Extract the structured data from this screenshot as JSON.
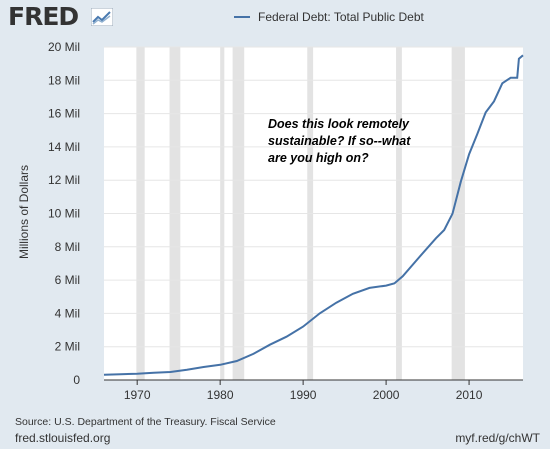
{
  "header": {
    "logo_text": "FRED",
    "logo_icon": "trend-chart-icon"
  },
  "annotation": {
    "lines": [
      "Does this look remotely",
      "sustainable? If so--what",
      "are you high on?"
    ]
  },
  "footer": {
    "source": "Source: U.S. Department of the Treasury. Fiscal Service",
    "site": "fred.stlouisfed.org",
    "short_url": "myf.red/g/chWT"
  },
  "colors": {
    "series": "#4572a7",
    "recession": "#e3e3e3",
    "plot_bg": "#ffffff",
    "page_bg": "#e1e9f0"
  },
  "chart_data": {
    "type": "line",
    "ylabel": "Millions of Dollars",
    "xlim": [
      1966,
      2016.5
    ],
    "ylim": [
      0,
      20000000
    ],
    "x_ticks": [
      1970,
      1980,
      1990,
      2000,
      2010
    ],
    "y_ticks": [
      {
        "value": 0,
        "label": "0"
      },
      {
        "value": 2000000,
        "label": "2 Mil"
      },
      {
        "value": 4000000,
        "label": "4 Mil"
      },
      {
        "value": 6000000,
        "label": "6 Mil"
      },
      {
        "value": 8000000,
        "label": "8 Mil"
      },
      {
        "value": 10000000,
        "label": "10 Mil"
      },
      {
        "value": 12000000,
        "label": "12 Mil"
      },
      {
        "value": 14000000,
        "label": "14 Mil"
      },
      {
        "value": 16000000,
        "label": "16 Mil"
      },
      {
        "value": 18000000,
        "label": "18 Mil"
      },
      {
        "value": 20000000,
        "label": "20 Mil"
      }
    ],
    "grid": true,
    "legend_position": "top",
    "recessions": [
      [
        1969.9,
        1970.9
      ],
      [
        1973.9,
        1975.2
      ],
      [
        1980.0,
        1980.5
      ],
      [
        1981.5,
        1982.9
      ],
      [
        1990.5,
        1991.2
      ],
      [
        2001.2,
        2001.9
      ],
      [
        2007.9,
        2009.5
      ]
    ],
    "series": [
      {
        "name": "Federal Debt: Total Public Debt",
        "x": [
          1966,
          1968,
          1970,
          1972,
          1974,
          1976,
          1978,
          1980,
          1982,
          1984,
          1986,
          1988,
          1990,
          1992,
          1994,
          1996,
          1998,
          2000,
          2001,
          2002,
          2004,
          2006,
          2007,
          2008,
          2009,
          2010,
          2011,
          2012,
          2013,
          2014,
          2015,
          2015.8,
          2016,
          2016.5
        ],
        "y": [
          320000,
          350000,
          380000,
          430000,
          480000,
          620000,
          780000,
          910000,
          1140000,
          1570000,
          2120000,
          2600000,
          3210000,
          4000000,
          4640000,
          5180000,
          5530000,
          5670000,
          5800000,
          6230000,
          7380000,
          8510000,
          9010000,
          9990000,
          11910000,
          13560000,
          14790000,
          16070000,
          16740000,
          17820000,
          18150000,
          18150000,
          19300000,
          19500000
        ]
      }
    ]
  }
}
